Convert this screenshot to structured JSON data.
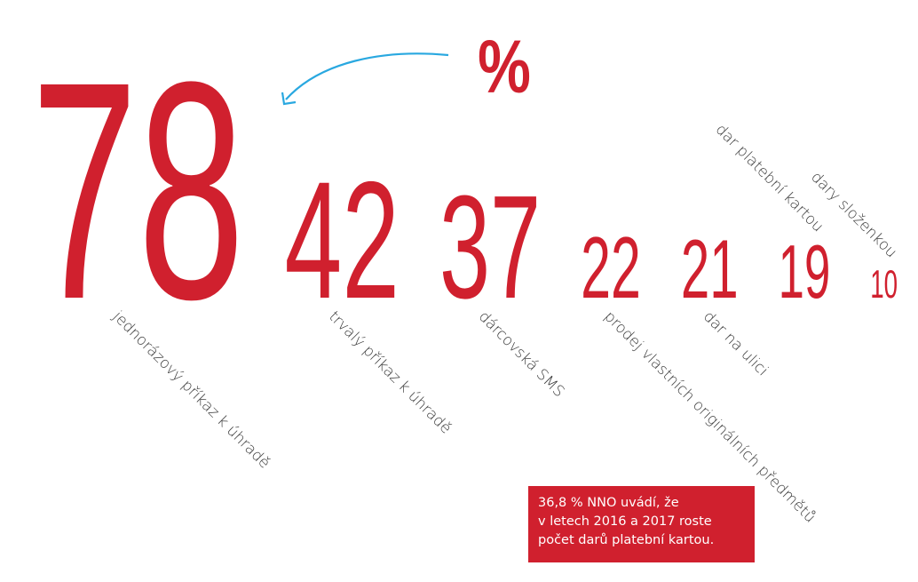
{
  "chart_data": {
    "type": "number",
    "unit_annotation": "%",
    "categories": [
      "jednorázový příkaz k úhradě",
      "trvalý příkaz k úhradě",
      "dárcovská SMS",
      "prodej vlastních originálních předmětů",
      "dar na ulici",
      "dar platební kartou",
      "dary složenkou"
    ],
    "values": [
      78,
      42,
      37,
      22,
      21,
      19,
      10
    ],
    "color": "#d0202e",
    "note": [
      "36,8 % NNO uvádí, že",
      "v letech 2016 a 2017 roste",
      "počet darů platební kartou."
    ],
    "note_color": "#d0202e",
    "arrow_color": "#29a8e0"
  }
}
